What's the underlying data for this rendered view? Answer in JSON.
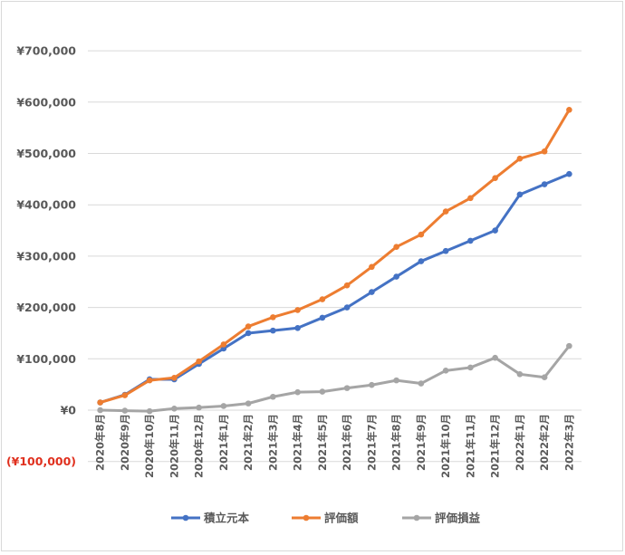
{
  "chart_data": {
    "type": "line",
    "title": "",
    "xlabel": "",
    "ylabel": "",
    "ylim": [
      -100000,
      700000
    ],
    "y_ticks": [
      -100000,
      0,
      100000,
      200000,
      300000,
      400000,
      500000,
      600000,
      700000
    ],
    "y_tick_labels": [
      "(¥100,000)",
      "¥0",
      "¥100,000",
      "¥200,000",
      "¥300,000",
      "¥400,000",
      "¥500,000",
      "¥600,000",
      "¥700,000"
    ],
    "grid": true,
    "legend_position": "bottom",
    "categories": [
      "2020年8月",
      "2020年9月",
      "2020年10月",
      "2020年11月",
      "2020年12月",
      "2021年1月",
      "2021年2月",
      "2021年3月",
      "2021年4月",
      "2021年5月",
      "2021年6月",
      "2021年7月",
      "2021年8月",
      "2021年9月",
      "2021年10月",
      "2021年11月",
      "2021年12月",
      "2022年1月",
      "2022年2月",
      "2022年3月"
    ],
    "series": [
      {
        "name": "積立元本",
        "color": "#4472c4",
        "values": [
          15000,
          30000,
          60000,
          60000,
          90000,
          120000,
          150000,
          155000,
          160000,
          180000,
          200000,
          230000,
          260000,
          290000,
          310000,
          330000,
          350000,
          420000,
          440000,
          460000
        ]
      },
      {
        "name": "評価額",
        "color": "#ed7d31",
        "values": [
          15000,
          29000,
          58000,
          63000,
          95000,
          128000,
          163000,
          181000,
          195000,
          216000,
          243000,
          279000,
          318000,
          342000,
          387000,
          413000,
          452000,
          490000,
          504000,
          585000
        ]
      },
      {
        "name": "評価損益",
        "color": "#a5a5a5",
        "values": [
          0,
          -1000,
          -2000,
          3000,
          5000,
          8000,
          13000,
          26000,
          35000,
          36000,
          43000,
          49000,
          58000,
          52000,
          77000,
          83000,
          102000,
          70000,
          64000,
          125000
        ]
      }
    ]
  }
}
